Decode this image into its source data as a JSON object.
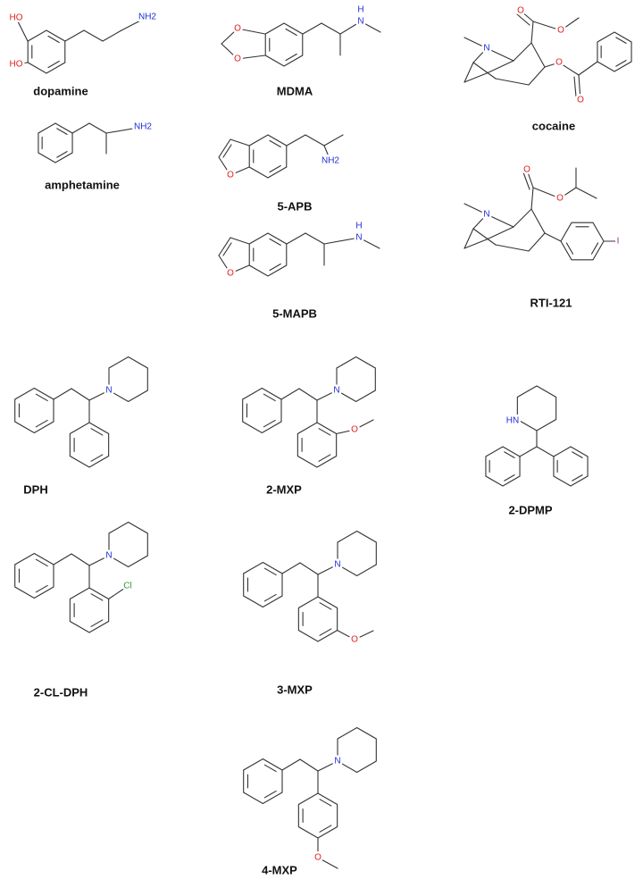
{
  "molecules": [
    {
      "name": "dopamine",
      "atoms": [
        "HO",
        "HO",
        "NH2"
      ]
    },
    {
      "name": "MDMA",
      "atoms": [
        "O",
        "O",
        "N",
        "H"
      ]
    },
    {
      "name": "cocaine",
      "atoms": [
        "N",
        "O",
        "O",
        "O",
        "O"
      ]
    },
    {
      "name": "amphetamine",
      "atoms": [
        "NH2"
      ]
    },
    {
      "name": "5-APB",
      "atoms": [
        "O",
        "NH2"
      ]
    },
    {
      "name": "5-MAPB",
      "atoms": [
        "O",
        "N",
        "H"
      ]
    },
    {
      "name": "RTI-121",
      "atoms": [
        "N",
        "O",
        "O",
        "I"
      ]
    },
    {
      "name": "DPH",
      "atoms": [
        "N"
      ]
    },
    {
      "name": "2-MXP",
      "atoms": [
        "N",
        "O"
      ]
    },
    {
      "name": "2-DPMP",
      "atoms": [
        "HN"
      ]
    },
    {
      "name": "2-CL-DPH",
      "atoms": [
        "N",
        "Cl"
      ]
    },
    {
      "name": "3-MXP",
      "atoms": [
        "N",
        "O"
      ]
    },
    {
      "name": "4-MXP",
      "atoms": [
        "N",
        "O"
      ]
    }
  ]
}
